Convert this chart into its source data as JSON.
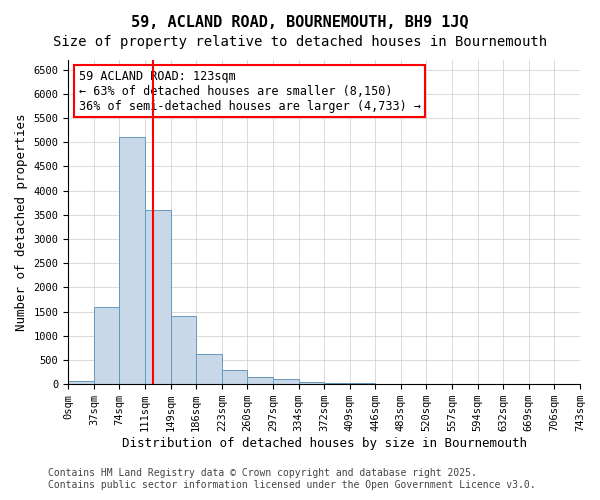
{
  "title": "59, ACLAND ROAD, BOURNEMOUTH, BH9 1JQ",
  "subtitle": "Size of property relative to detached houses in Bournemouth",
  "xlabel": "Distribution of detached houses by size in Bournemouth",
  "ylabel": "Number of detached properties",
  "footer_line1": "Contains HM Land Registry data © Crown copyright and database right 2025.",
  "footer_line2": "Contains public sector information licensed under the Open Government Licence v3.0.",
  "annotation_line1": "59 ACLAND ROAD: 123sqm",
  "annotation_line2": "← 63% of detached houses are smaller (8,150)",
  "annotation_line3": "36% of semi-detached houses are larger (4,733) →",
  "bin_labels": [
    "0sqm",
    "37sqm",
    "74sqm",
    "111sqm",
    "149sqm",
    "186sqm",
    "223sqm",
    "260sqm",
    "297sqm",
    "334sqm",
    "372sqm",
    "409sqm",
    "446sqm",
    "483sqm",
    "520sqm",
    "557sqm",
    "594sqm",
    "632sqm",
    "669sqm",
    "706sqm",
    "743sqm"
  ],
  "bar_heights": [
    75,
    1600,
    5100,
    3600,
    1400,
    620,
    300,
    150,
    100,
    50,
    30,
    20,
    5,
    0,
    0,
    0,
    0,
    0,
    0,
    0
  ],
  "bar_color": "#c8d8e8",
  "bar_edge_color": "#6699bb",
  "redline_x": 3.24,
  "ylim": [
    0,
    6700
  ],
  "yticks": [
    0,
    500,
    1000,
    1500,
    2000,
    2500,
    3000,
    3500,
    4000,
    4500,
    5000,
    5500,
    6000,
    6500
  ],
  "background_color": "#ffffff",
  "grid_color": "#cccccc",
  "title_fontsize": 11,
  "subtitle_fontsize": 10,
  "axis_fontsize": 9,
  "tick_fontsize": 7.5,
  "annotation_fontsize": 8.5,
  "footer_fontsize": 7
}
